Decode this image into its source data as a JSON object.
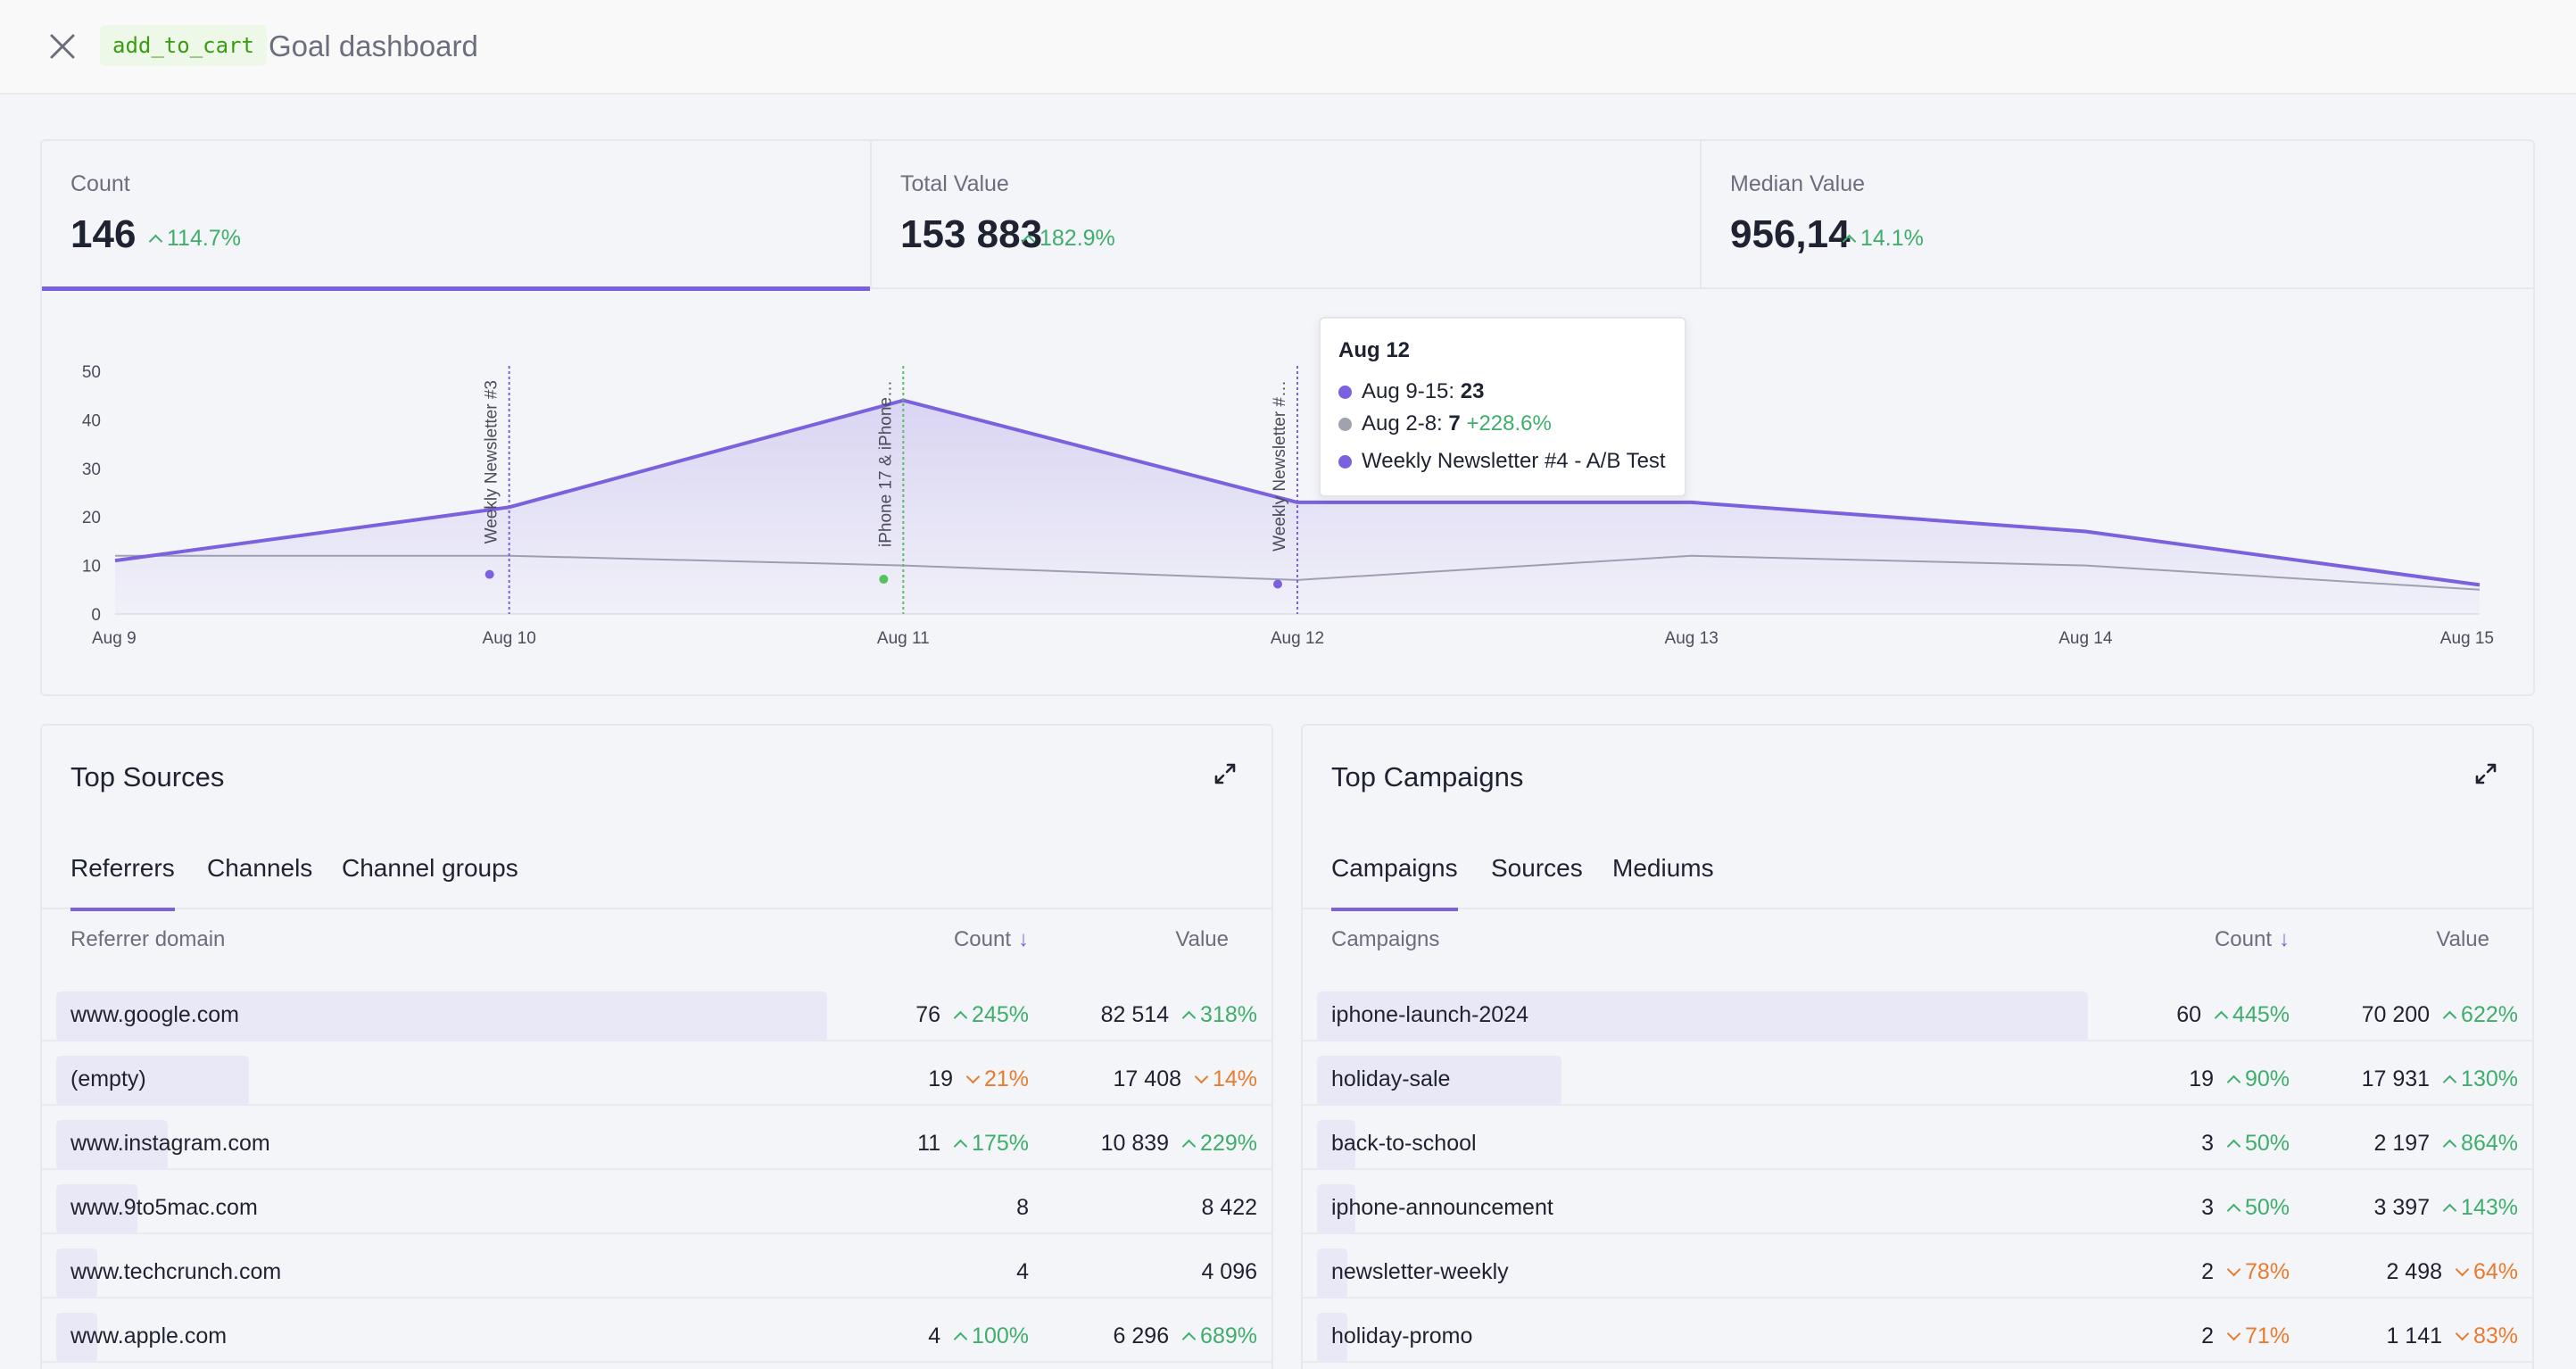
{
  "header": {
    "goal_tag": "add_to_cart",
    "title": "Goal dashboard",
    "close_icon": "close-icon"
  },
  "kpis": [
    {
      "label": "Count",
      "value": "146",
      "delta": "114.7%",
      "trend": "up",
      "active": true
    },
    {
      "label": "Total Value",
      "value": "153 883",
      "delta": "182.9%",
      "trend": "up",
      "active": false
    },
    {
      "label": "Median Value",
      "value": "956,14",
      "delta": "14.1%",
      "trend": "up",
      "active": false
    }
  ],
  "chart_data": {
    "type": "area",
    "x": [
      "Aug 9",
      "Aug 10",
      "Aug 11",
      "Aug 12",
      "Aug 13",
      "Aug 14",
      "Aug 15"
    ],
    "xlim": [
      0,
      6
    ],
    "ylim": [
      0,
      50
    ],
    "yticks": [
      0,
      10,
      20,
      30,
      40,
      50
    ],
    "series": [
      {
        "name": "Aug 9-15",
        "color": "#7b61de",
        "x": [
          0,
          1,
          2,
          3,
          4,
          5,
          6
        ],
        "values": [
          11,
          22,
          44,
          23,
          23,
          17,
          6
        ]
      },
      {
        "name": "Aug 2-8",
        "color": "#a0a3ad",
        "x": [
          0,
          1,
          2,
          3,
          4,
          5,
          6
        ],
        "values": [
          12,
          12,
          10,
          7,
          12,
          10,
          5
        ]
      }
    ],
    "annotations": [
      {
        "x": 1,
        "label": "Weekly Newsletter #3",
        "color": "#7b61de",
        "marker_y": 10
      },
      {
        "x": 2,
        "label": "iPhone 17 & iPhone…",
        "color": "#53c25e",
        "marker_y": 9
      },
      {
        "x": 3,
        "label": "Weekly Newsletter #…",
        "color": "#7b61de",
        "marker_y": 8
      }
    ],
    "grid": false
  },
  "tooltip": {
    "title": "Aug 12",
    "current_label": "Aug 9-15: ",
    "current_value": "23",
    "previous_label": "Aug 2-8: ",
    "previous_value": "7",
    "previous_change": "+228.6%",
    "annotation": "Weekly Newsletter #4 - A/B Test",
    "colors": {
      "current": "#7b61de",
      "previous": "#a0a3ad",
      "annotation": "#7b61de"
    }
  },
  "sources": {
    "title": "Top Sources",
    "expand_icon": "expand-icon",
    "tabs": [
      "Referrers",
      "Channels",
      "Channel groups"
    ],
    "columns": {
      "name": "Referrer domain",
      "count": "Count",
      "value": "Value"
    },
    "rows": [
      {
        "name": "www.google.com",
        "count": "76",
        "count_delta": "245%",
        "count_trend": "up",
        "value": "82 514",
        "value_delta": "318%",
        "value_trend": "up",
        "share": 1.0
      },
      {
        "name": "(empty)",
        "count": "19",
        "count_delta": "21%",
        "count_trend": "down",
        "value": "17 408",
        "value_delta": "14%",
        "value_trend": "down",
        "share": 0.25
      },
      {
        "name": "www.instagram.com",
        "count": "11",
        "count_delta": "175%",
        "count_trend": "up",
        "value": "10 839",
        "value_delta": "229%",
        "value_trend": "up",
        "share": 0.145
      },
      {
        "name": "www.9to5mac.com",
        "count": "8",
        "count_delta": "",
        "count_trend": "",
        "value": "8 422",
        "value_delta": "",
        "value_trend": "",
        "share": 0.105
      },
      {
        "name": "www.techcrunch.com",
        "count": "4",
        "count_delta": "",
        "count_trend": "",
        "value": "4 096",
        "value_delta": "",
        "value_trend": "",
        "share": 0.053
      },
      {
        "name": "www.apple.com",
        "count": "4",
        "count_delta": "100%",
        "count_trend": "up",
        "value": "6 296",
        "value_delta": "689%",
        "value_trend": "up",
        "share": 0.053
      }
    ]
  },
  "campaigns": {
    "title": "Top Campaigns",
    "expand_icon": "expand-icon",
    "tabs": [
      "Campaigns",
      "Sources",
      "Mediums"
    ],
    "columns": {
      "name": "Campaigns",
      "count": "Count",
      "value": "Value"
    },
    "rows": [
      {
        "name": "iphone-launch-2024",
        "count": "60",
        "count_delta": "445%",
        "count_trend": "up",
        "value": "70 200",
        "value_delta": "622%",
        "value_trend": "up",
        "share": 1.0
      },
      {
        "name": "holiday-sale",
        "count": "19",
        "count_delta": "90%",
        "count_trend": "up",
        "value": "17 931",
        "value_delta": "130%",
        "value_trend": "up",
        "share": 0.317
      },
      {
        "name": "back-to-school",
        "count": "3",
        "count_delta": "50%",
        "count_trend": "up",
        "value": "2 197",
        "value_delta": "864%",
        "value_trend": "up",
        "share": 0.05
      },
      {
        "name": "iphone-announcement",
        "count": "3",
        "count_delta": "50%",
        "count_trend": "up",
        "value": "3 397",
        "value_delta": "143%",
        "value_trend": "up",
        "share": 0.05
      },
      {
        "name": "newsletter-weekly",
        "count": "2",
        "count_delta": "78%",
        "count_trend": "down",
        "value": "2 498",
        "value_delta": "64%",
        "value_trend": "down",
        "share": 0.033
      },
      {
        "name": "holiday-promo",
        "count": "2",
        "count_delta": "71%",
        "count_trend": "down",
        "value": "1 141",
        "value_delta": "83%",
        "value_trend": "down",
        "share": 0.033
      }
    ]
  }
}
